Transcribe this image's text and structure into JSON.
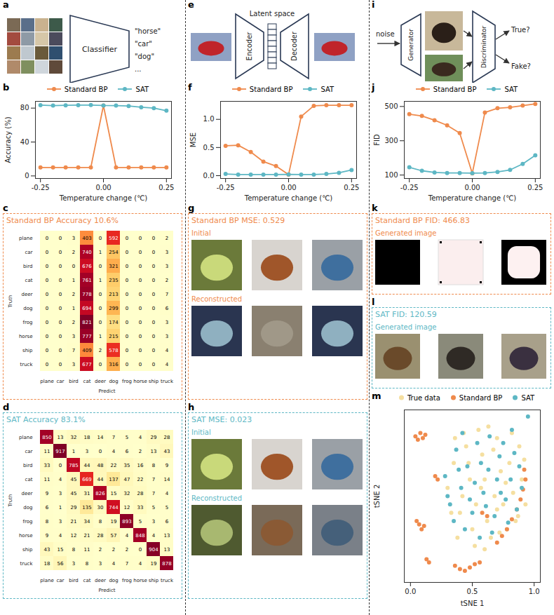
{
  "diagrams": [
    {
      "panel": "a",
      "block": "Classifier",
      "outputs": [
        "\"horse\"",
        "\"car\"",
        "\"dog\"",
        "..."
      ]
    },
    {
      "panel": "e",
      "latent": "Latent space",
      "encoder": "Encoder",
      "decoder": "Decoder"
    },
    {
      "panel": "i",
      "input": "noise",
      "generator": "Generator",
      "discriminator": "Discriminator",
      "outputs": [
        "True?",
        "Fake?"
      ]
    }
  ],
  "chart_data": [
    {
      "panel": "b",
      "type": "line",
      "x_label": "Temperature change (℃)",
      "y_label": "Accuracy (%)",
      "x": [
        -0.25,
        -0.2,
        -0.15,
        -0.1,
        -0.05,
        0,
        0.05,
        0.1,
        0.15,
        0.2,
        0.25
      ],
      "xlim": [
        -0.27,
        0.27
      ],
      "xticks": [
        -0.25,
        {
          "value": 0,
          "label": "0.00"
        },
        0.25
      ],
      "ylim": [
        -3,
        88
      ],
      "yticks": [
        0,
        40,
        80
      ],
      "legend": "top",
      "marker": "circle",
      "series": [
        {
          "name": "Standard BP",
          "color": "#EF8A4C",
          "values": [
            10,
            10,
            10,
            10,
            10,
            83,
            10,
            10,
            10,
            10,
            10
          ]
        },
        {
          "name": "SAT",
          "color": "#5DB7C4",
          "values": [
            83.5,
            83,
            83.3,
            83.5,
            83.6,
            83.1,
            83,
            82.5,
            81,
            80,
            77
          ]
        }
      ]
    },
    {
      "panel": "f",
      "type": "line",
      "x_label": "Temperature change (℃)",
      "y_label": "MSE",
      "x": [
        -0.25,
        -0.2,
        -0.15,
        -0.1,
        -0.05,
        0,
        0.05,
        0.1,
        0.15,
        0.2,
        0.25
      ],
      "xlim": [
        -0.27,
        0.27
      ],
      "xticks": [
        -0.25,
        {
          "value": 0,
          "label": "0.00"
        },
        0.25
      ],
      "ylim": [
        -0.05,
        1.32
      ],
      "yticks": [
        {
          "value": 0,
          "label": "0.0"
        },
        {
          "value": 0.5,
          "label": "0.5"
        },
        {
          "value": 1,
          "label": "1.0"
        }
      ],
      "legend": "top",
      "marker": "circle",
      "series": [
        {
          "name": "Standard BP",
          "color": "#EF8A4C",
          "values": [
            0.53,
            0.54,
            0.42,
            0.25,
            0.17,
            0.02,
            1.05,
            1.24,
            1.25,
            1.25,
            1.25
          ]
        },
        {
          "name": "SAT",
          "color": "#5DB7C4",
          "values": [
            0.03,
            0.02,
            0.02,
            0.02,
            0.02,
            0.023,
            0.02,
            0.02,
            0.03,
            0.05,
            0.1
          ]
        }
      ]
    },
    {
      "panel": "j",
      "type": "line",
      "x_label": "Temperature change (℃)",
      "y_label": "FID",
      "x": [
        -0.25,
        -0.2,
        -0.15,
        -0.1,
        -0.05,
        0,
        0.05,
        0.1,
        0.15,
        0.2,
        0.25
      ],
      "xlim": [
        -0.27,
        0.27
      ],
      "xticks": [
        -0.25,
        {
          "value": 0,
          "label": "0.00"
        },
        0.25
      ],
      "ylim": [
        80,
        530
      ],
      "yticks": [
        100,
        300,
        500
      ],
      "legend": "top",
      "marker": "circle",
      "series": [
        {
          "name": "Standard BP",
          "color": "#EF8A4C",
          "values": [
            455,
            445,
            420,
            390,
            345,
            110,
            465,
            490,
            495,
            505,
            515
          ]
        },
        {
          "name": "SAT",
          "color": "#5DB7C4",
          "values": [
            145,
            125,
            115,
            112,
            112,
            111,
            112,
            118,
            130,
            165,
            215
          ]
        }
      ]
    },
    {
      "panel": "c",
      "type": "heatmap",
      "title": "Standard BP Accuracy 10.6%",
      "color": "#EF8A4C",
      "x_label": "Predict",
      "y_label": "Truth",
      "data_labels": true,
      "categories": [
        "plane",
        "car",
        "bird",
        "cat",
        "deer",
        "dog",
        "frog",
        "horse",
        "ship",
        "truck"
      ],
      "cells": [
        [
          0,
          0,
          3,
          403,
          0,
          592,
          0,
          0,
          0,
          2
        ],
        [
          0,
          0,
          2,
          740,
          1,
          254,
          0,
          0,
          0,
          3
        ],
        [
          0,
          0,
          0,
          676,
          0,
          321,
          0,
          0,
          0,
          3
        ],
        [
          0,
          0,
          1,
          761,
          1,
          235,
          0,
          0,
          0,
          2
        ],
        [
          0,
          0,
          2,
          778,
          0,
          213,
          0,
          0,
          0,
          7
        ],
        [
          0,
          0,
          1,
          694,
          0,
          299,
          0,
          0,
          0,
          6
        ],
        [
          0,
          0,
          2,
          821,
          0,
          174,
          0,
          0,
          0,
          3
        ],
        [
          0,
          0,
          3,
          777,
          1,
          215,
          0,
          0,
          0,
          3
        ],
        [
          0,
          0,
          7,
          409,
          2,
          578,
          0,
          0,
          0,
          4
        ],
        [
          0,
          0,
          3,
          677,
          0,
          316,
          0,
          0,
          0,
          4
        ]
      ]
    },
    {
      "panel": "d",
      "type": "heatmap",
      "title": "SAT Accuracy 83.1%",
      "color": "#5DB7C4",
      "x_label": "Predict",
      "y_label": "Truth",
      "data_labels": true,
      "categories": [
        "plane",
        "car",
        "bird",
        "cat",
        "deer",
        "dog",
        "frog",
        "horse",
        "ship",
        "truck"
      ],
      "cells": [
        [
          850,
          13,
          32,
          18,
          14,
          7,
          5,
          4,
          29,
          28
        ],
        [
          11,
          917,
          1,
          3,
          0,
          4,
          6,
          2,
          13,
          43
        ],
        [
          33,
          0,
          785,
          44,
          48,
          22,
          35,
          16,
          8,
          9
        ],
        [
          11,
          4,
          45,
          669,
          44,
          137,
          47,
          22,
          7,
          14
        ],
        [
          9,
          3,
          45,
          31,
          826,
          15,
          32,
          28,
          7,
          4
        ],
        [
          6,
          1,
          29,
          135,
          30,
          744,
          12,
          33,
          5,
          5
        ],
        [
          8,
          3,
          21,
          34,
          8,
          19,
          893,
          5,
          3,
          6
        ],
        [
          9,
          4,
          12,
          21,
          28,
          57,
          4,
          848,
          4,
          13
        ],
        [
          43,
          15,
          8,
          11,
          2,
          2,
          2,
          0,
          904,
          13
        ],
        [
          18,
          56,
          3,
          8,
          3,
          4,
          7,
          4,
          19,
          878
        ]
      ]
    },
    {
      "panel": "m",
      "type": "scatter",
      "x_label": "tSNE 1",
      "y_label": "tSNE 2",
      "legend": "top",
      "xlim": [
        -0.05,
        1.05
      ],
      "xticks": [
        {
          "value": 0,
          "label": "0.0"
        },
        {
          "value": 0.5,
          "label": "0.5"
        },
        {
          "value": 1,
          "label": "1.0"
        }
      ],
      "ylim": [
        -0.02,
        1.02
      ],
      "yticks": [],
      "series": [
        {
          "name": "True data",
          "color": "#F5DFA0",
          "x": [
            0.3,
            0.35,
            0.4,
            0.45,
            0.5,
            0.55,
            0.6,
            0.65,
            0.7,
            0.75,
            0.8,
            0.85,
            0.9,
            0.38,
            0.48,
            0.58,
            0.68,
            0.78,
            0.88,
            0.33,
            0.43,
            0.53,
            0.63,
            0.73,
            0.83,
            0.93,
            0.42,
            0.52,
            0.62,
            0.72,
            0.82,
            0.47,
            0.57,
            0.67,
            0.77,
            0.87,
            0.36,
            0.6,
            0.7,
            0.92
          ],
          "y": [
            0.55,
            0.7,
            0.4,
            0.8,
            0.3,
            0.9,
            0.6,
            0.25,
            0.85,
            0.45,
            0.7,
            0.35,
            0.6,
            0.25,
            0.6,
            0.75,
            0.5,
            0.3,
            0.8,
            0.4,
            0.88,
            0.45,
            0.92,
            0.65,
            0.52,
            0.45,
            0.5,
            0.2,
            0.35,
            0.28,
            0.88,
            0.7,
            0.55,
            0.78,
            0.58,
            0.38,
            0.85,
            0.18,
            0.42,
            0.72
          ]
        },
        {
          "name": "Standard BP",
          "color": "#EF8A4C",
          "x": [
            0.04,
            0.06,
            0.08,
            0.1,
            0.12,
            0.05,
            0.07,
            0.09,
            0.11,
            0.2,
            0.22,
            0.13,
            0.15,
            0.36,
            0.4,
            0.44,
            0.48,
            0.52,
            0.56,
            0.7,
            0.74,
            0.78,
            0.82,
            0.86,
            0.89,
            0.91,
            0.93,
            0.92,
            0.58,
            0.62
          ],
          "y": [
            0.86,
            0.84,
            0.88,
            0.85,
            0.87,
            0.35,
            0.33,
            0.3,
            0.32,
            0.62,
            0.6,
            0.12,
            0.1,
            0.08,
            0.06,
            0.05,
            0.07,
            0.09,
            0.1,
            0.22,
            0.26,
            0.3,
            0.36,
            0.42,
            0.48,
            0.54,
            0.6,
            0.66,
            0.4,
            0.38
          ]
        },
        {
          "name": "SAT",
          "color": "#5DB7C4",
          "x": [
            0.28,
            0.32,
            0.37,
            0.41,
            0.46,
            0.5,
            0.54,
            0.59,
            0.63,
            0.68,
            0.72,
            0.77,
            0.81,
            0.86,
            0.9,
            0.35,
            0.44,
            0.52,
            0.61,
            0.7,
            0.79,
            0.88,
            0.3,
            0.39,
            0.48,
            0.57,
            0.66,
            0.75,
            0.84,
            0.42,
            0.56,
            0.64,
            0.73,
            0.82,
            0.95
          ],
          "y": [
            0.62,
            0.45,
            0.78,
            0.55,
            0.68,
            0.4,
            0.82,
            0.52,
            0.66,
            0.38,
            0.74,
            0.48,
            0.6,
            0.42,
            0.55,
            0.35,
            0.3,
            0.58,
            0.44,
            0.6,
            0.34,
            0.68,
            0.5,
            0.66,
            0.48,
            0.7,
            0.28,
            0.82,
            0.76,
            0.88,
            0.25,
            0.86,
            0.52,
            0.9,
            0.98
          ]
        }
      ]
    }
  ],
  "image_panels": [
    {
      "panel": "g",
      "title": "Standard BP MSE: 0.529",
      "color": "#EF8A4C",
      "rows": [
        "Initial",
        "Reconstructed"
      ]
    },
    {
      "panel": "h",
      "title": "SAT MSE: 0.023",
      "color": "#5DB7C4",
      "rows": [
        "Initial",
        "Reconstructed"
      ]
    },
    {
      "panel": "k",
      "title": "Standard BP FID: 466.83",
      "color": "#EF8A4C",
      "rows": [
        "Generated image"
      ]
    },
    {
      "panel": "l",
      "title": "SAT FID: 120.59",
      "color": "#5DB7C4",
      "rows": [
        "Generated image"
      ]
    }
  ]
}
